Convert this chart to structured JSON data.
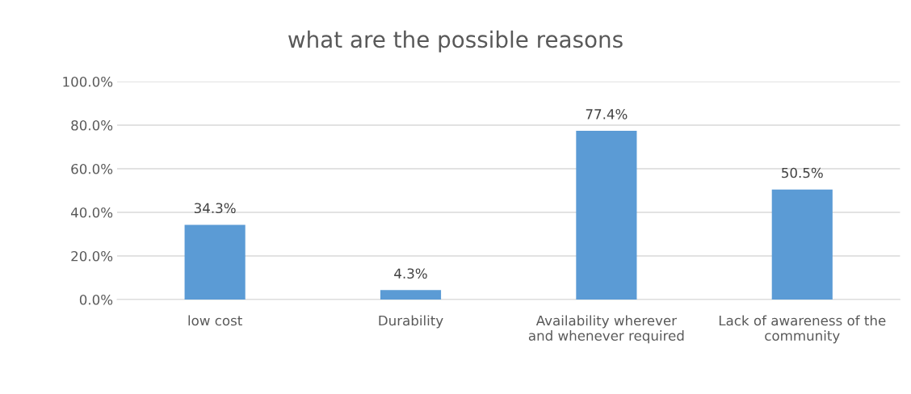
{
  "chart_data": {
    "type": "bar",
    "title": "what are the possible reasons",
    "categories": [
      "low cost",
      "Durability",
      "Availability wherever\nand whenever required",
      "Lack of awareness of the\ncommunity"
    ],
    "values": [
      34.3,
      4.3,
      77.4,
      50.5
    ],
    "value_labels": [
      "34.3%",
      "4.3%",
      "77.4%",
      "50.5%"
    ],
    "color": "#5b9bd5",
    "ylim": [
      0,
      100
    ],
    "yticks": [
      {
        "value": 0,
        "label": "0.0%"
      },
      {
        "value": 20,
        "label": "20.0%"
      },
      {
        "value": 40,
        "label": "40.0%"
      },
      {
        "value": 60,
        "label": "60.0%"
      },
      {
        "value": 80,
        "label": "80.0%"
      },
      {
        "value": 100,
        "label": "100.0%"
      }
    ],
    "grid": "y",
    "legend": false
  }
}
